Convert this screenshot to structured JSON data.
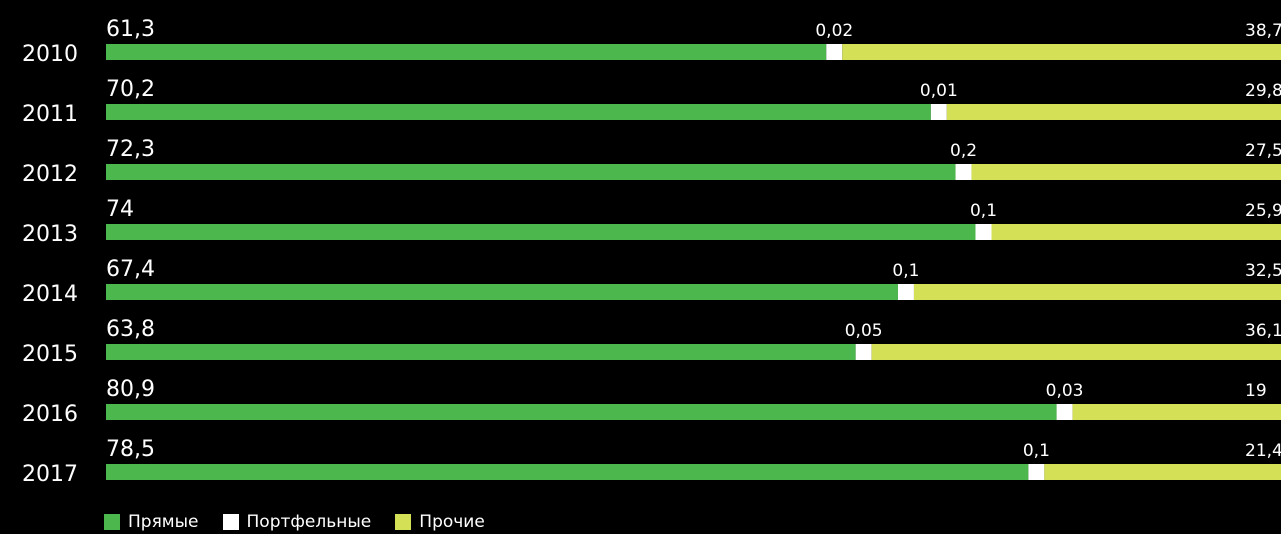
{
  "chart_data": {
    "type": "bar",
    "orientation": "horizontal",
    "stacked": true,
    "categories": [
      "2010",
      "2011",
      "2012",
      "2013",
      "2014",
      "2015",
      "2016",
      "2017"
    ],
    "series": [
      {
        "name": "Прямые",
        "color": "#4cb74c",
        "values": [
          61.3,
          70.2,
          72.3,
          74,
          67.4,
          63.8,
          80.9,
          78.5
        ],
        "labels": [
          "61,3",
          "70,2",
          "72,3",
          "74",
          "67,4",
          "63,8",
          "80,9",
          "78,5"
        ]
      },
      {
        "name": "Портфельные",
        "color": "#ffffff",
        "values": [
          0.02,
          0.01,
          0.2,
          0.1,
          0.1,
          0.05,
          0.03,
          0.1
        ],
        "labels": [
          "0,02",
          "0,01",
          "0,2",
          "0,1",
          "0,1",
          "0,05",
          "0,03",
          "0,1"
        ]
      },
      {
        "name": "Прочие",
        "color": "#d4e157",
        "values": [
          38.7,
          29.8,
          27.5,
          25.9,
          32.5,
          36.1,
          19,
          21.4
        ],
        "labels": [
          "38,7",
          "29,8",
          "27,5",
          "25,9",
          "32,5",
          "36,1",
          "19",
          "21,4"
        ]
      }
    ],
    "xlim": [
      0,
      100
    ],
    "grid": false,
    "legend_position": "bottom-left"
  }
}
